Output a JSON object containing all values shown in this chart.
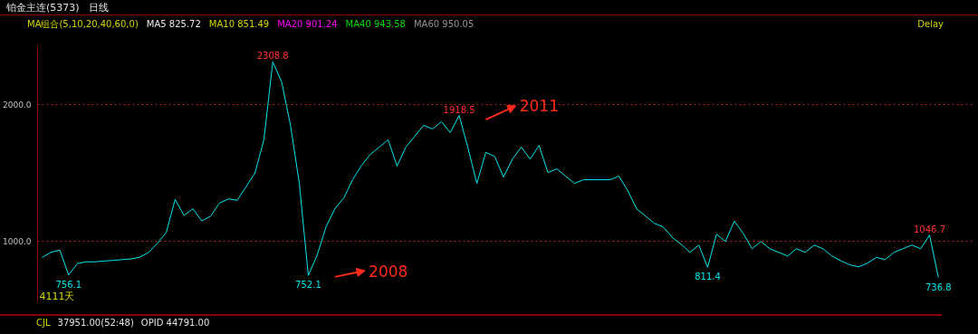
{
  "chart_data": {
    "type": "line",
    "title": "铂金主连(5373)",
    "subtitle": "日线",
    "categories": [
      null,
      null,
      null,
      null,
      null,
      null,
      null,
      null,
      null,
      null,
      null,
      null,
      null,
      null,
      null,
      null,
      null,
      null,
      null,
      null,
      null,
      null,
      null,
      null,
      null,
      null,
      null,
      null,
      null,
      null,
      null,
      null,
      null,
      null,
      null,
      null,
      null,
      null,
      null,
      null,
      null,
      null,
      null,
      null,
      null,
      null,
      null,
      null,
      null,
      null,
      null,
      null,
      null,
      null,
      null,
      null,
      null,
      null,
      null,
      null,
      null,
      null,
      null,
      null,
      null,
      null,
      null,
      null,
      null,
      null,
      null,
      null,
      null,
      null,
      null,
      null,
      null,
      null,
      null,
      null,
      null,
      null,
      null,
      null,
      null,
      null,
      null,
      null,
      null,
      null,
      null,
      null,
      null,
      null,
      null,
      null,
      null,
      null,
      null,
      null,
      null,
      null
    ],
    "series": [
      {
        "color": "#00e5ee",
        "values": [
          884,
          921,
          937,
          756.1,
          840,
          852,
          852,
          858,
          862,
          868,
          873,
          885,
          920,
          987,
          1066,
          1307,
          1190,
          1238,
          1150,
          1185,
          1280,
          1310,
          1300,
          1400,
          1500,
          1741,
          2308.8,
          2164,
          1846,
          1420,
          752.1,
          900,
          1106,
          1238,
          1317,
          1450,
          1555,
          1635,
          1688,
          1741,
          1550,
          1688,
          1767,
          1846,
          1820,
          1873,
          1794,
          1918.5,
          1680,
          1423,
          1650,
          1620,
          1470,
          1600,
          1688,
          1600,
          1700,
          1503,
          1529,
          1476,
          1423,
          1450,
          1450,
          1450,
          1450,
          1476,
          1370,
          1238,
          1185,
          1132,
          1106,
          1030,
          980,
          921,
          974,
          811.4,
          1053,
          1000,
          1148,
          1060,
          947,
          1000,
          947,
          921,
          894,
          947,
          921,
          974,
          947,
          894,
          860,
          830,
          815,
          841,
          884,
          868,
          921,
          947,
          974,
          947,
          1046.7,
          736.8
        ]
      }
    ],
    "ylim": [
      560,
      2420
    ],
    "yticks": [
      {
        "value": 1000,
        "label": "1000.0"
      },
      {
        "value": 2000,
        "label": "2000.0"
      }
    ],
    "tick_labels": "y",
    "grid": "y",
    "legend": false,
    "marker": "none",
    "line_style": "solid",
    "annotations": [
      "MA组合(5,10,20,40,60,0)",
      "MA5 825.72",
      "MA10 851.49",
      "MA20 901.24",
      "MA40 943.58",
      "MA60 950.05",
      "Delay",
      "CJL",
      "37951.00(52:48)",
      "OPID 44791.00",
      "4111天",
      "2008",
      "2011",
      {
        "text": "2308.8",
        "y": 2308.8
      },
      {
        "text": "1918.5",
        "y": 1918.5
      },
      {
        "text": "752.1",
        "y": 752.1
      },
      {
        "text": "811.4",
        "y": 811.4
      },
      {
        "text": "1046.7",
        "y": 1046.7
      },
      {
        "text": "736.8",
        "y": 736.8
      },
      {
        "text": "756.1",
        "y": 756.1
      }
    ]
  }
}
